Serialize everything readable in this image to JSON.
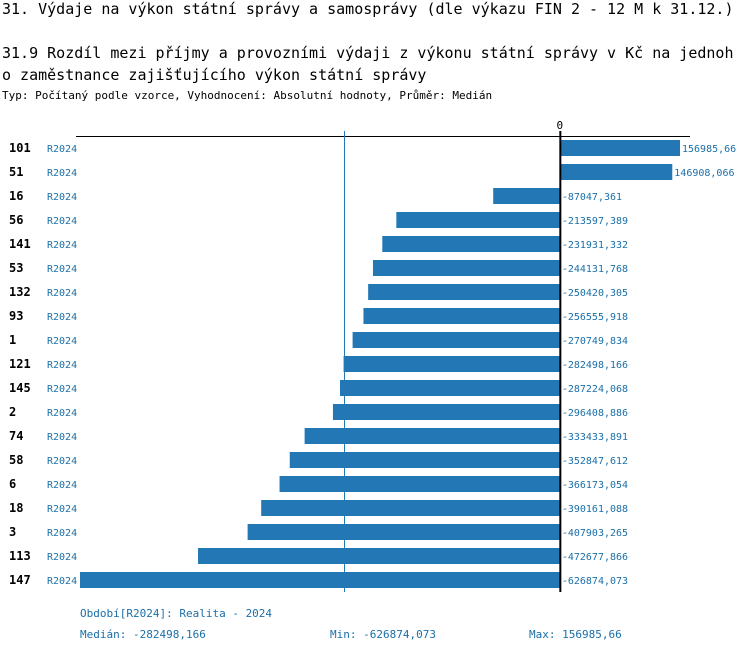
{
  "header": {
    "title": "31. Výdaje na výkon státní správy a samosprávy (dle výkazu FIN 2 - 12 M k 31.12.)",
    "subtitle_line1": "31.9 Rozdíl mezi příjmy a provozními výdaji z výkonu státní správy v Kč na jednoh",
    "subtitle_line2": "o zaměstnance zajišťujícího výkon státní správy",
    "type_line": "Typ: Počítaný podle vzorce, Vyhodnocení: Absolutní hodnoty, Průměr: Medián"
  },
  "footer": {
    "period": "Období[R2024]: Realita - 2024",
    "median": "Medián: -282498,166",
    "min": "Min: -626874,073",
    "max": "Max: 156985,66"
  },
  "colors": {
    "bar": "#2277b4",
    "label": "#1a6fa8",
    "axis": "#000000",
    "median_line": "#2277b4"
  },
  "chart_data": {
    "type": "bar",
    "orientation": "horizontal",
    "categories": [
      "101",
      "51",
      "16",
      "56",
      "141",
      "53",
      "132",
      "93",
      "1",
      "121",
      "145",
      "2",
      "74",
      "58",
      "6",
      "18",
      "3",
      "113",
      "147"
    ],
    "series": [
      {
        "name": "R2024",
        "values": [
          156985.66,
          146908.066,
          -87047.361,
          -213597.389,
          -231931.332,
          -244131.768,
          -250420.305,
          -256555.918,
          -270749.834,
          -282498.166,
          -287224.068,
          -296408.886,
          -333433.891,
          -352847.612,
          -366173.054,
          -390161.088,
          -407903.265,
          -472677.866,
          -626874.073
        ],
        "value_labels": [
          "156985,66",
          "146908,066",
          "-87047,361",
          "-213597,389",
          "-231931,332",
          "-244131,768",
          "-250420,305",
          "-256555,918",
          "-270749,834",
          "-282498,166",
          "-287224,068",
          "-296408,886",
          "-333433,891",
          "-352847,612",
          "-366173,054",
          "-390161,088",
          "-407903,265",
          "-472677,866",
          "-626874,073"
        ]
      }
    ],
    "zero_tick_label": "0",
    "median": -282498.166,
    "xlim": [
      -626874.073,
      156985.66
    ]
  }
}
